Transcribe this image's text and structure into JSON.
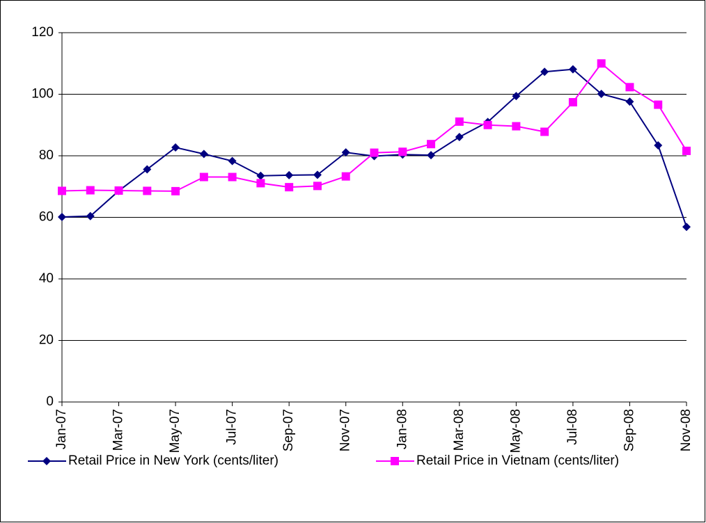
{
  "chart_data": {
    "type": "line",
    "categories": [
      "Jan-07",
      null,
      "Mar-07",
      null,
      "May-07",
      null,
      "Jul-07",
      null,
      "Sep-07",
      null,
      "Nov-07",
      null,
      "Jan-08",
      null,
      "Mar-08",
      null,
      "May-08",
      null,
      "Jul-08",
      null,
      "Sep-08",
      null,
      "Nov-08"
    ],
    "series": [
      {
        "name": "Retail Price in New York (cents/liter)",
        "color": "#000080",
        "marker": "diamond",
        "values": [
          60.1,
          60.4,
          68.6,
          75.6,
          82.7,
          80.6,
          78.3,
          73.5,
          73.7,
          73.8,
          81.1,
          79.9,
          80.4,
          80.2,
          86.1,
          91.0,
          99.4,
          107.3,
          108.1,
          100.1,
          97.6,
          83.4,
          56.9
        ]
      },
      {
        "name": "Retail Price in Vietnam (cents/liter)",
        "color": "#ff00ff",
        "marker": "square",
        "values": [
          68.6,
          68.8,
          68.7,
          68.6,
          68.5,
          73.1,
          73.1,
          71.1,
          69.8,
          70.2,
          73.3,
          81.0,
          81.3,
          83.8,
          91.1,
          90.0,
          89.6,
          87.8,
          97.4,
          110.0,
          102.3,
          96.6,
          81.6
        ]
      }
    ],
    "ylim": [
      0,
      120
    ],
    "yticks": [
      0,
      20,
      40,
      60,
      80,
      100,
      120
    ],
    "grid": true,
    "legend": "bottom"
  }
}
